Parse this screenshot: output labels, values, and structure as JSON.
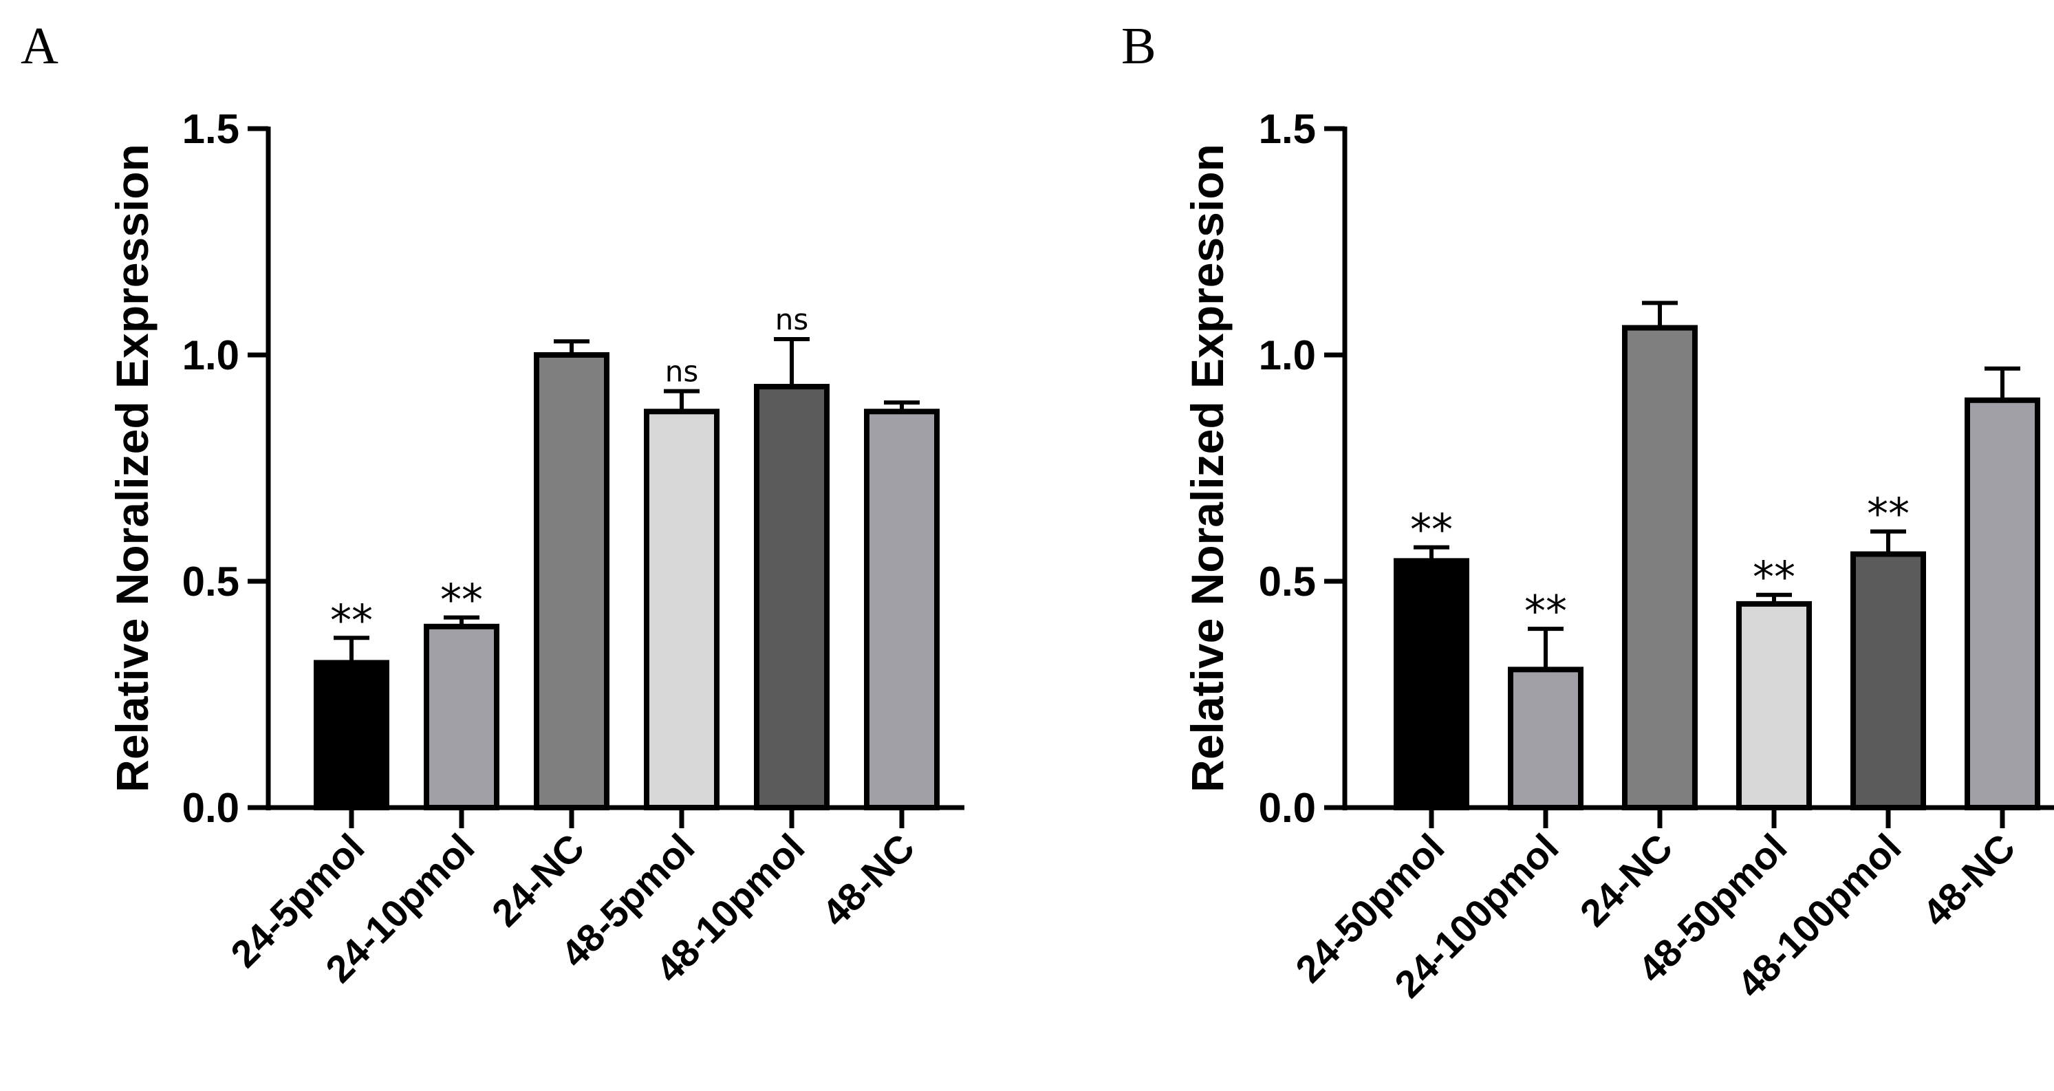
{
  "chart_data": [
    {
      "panel": "A",
      "type": "bar",
      "title": "",
      "xlabel": "",
      "ylabel": "Relative  Noralized Expression",
      "ylim": [
        0,
        1.5
      ],
      "yticks": [
        "0.0",
        "0.5",
        "1.0",
        "1.5"
      ],
      "categories": [
        "24-5pmol",
        "24-10pmol",
        "24-NC",
        "48-5pmol",
        "48-10pmol",
        "48-NC"
      ],
      "values": [
        0.32,
        0.4,
        1.0,
        0.875,
        0.93,
        0.875
      ],
      "errors": [
        0.055,
        0.02,
        0.03,
        0.045,
        0.105,
        0.02
      ],
      "significance": [
        "**",
        "**",
        "",
        "ns",
        "ns",
        ""
      ],
      "bar_colors": [
        "#000000",
        "#a1a0a6",
        "#7f7f7f",
        "#d7d7d7",
        "#5b5b5b",
        "#a1a0a6"
      ]
    },
    {
      "panel": "B",
      "type": "bar",
      "title": "",
      "xlabel": "",
      "ylabel": "Relative  Noralized Expression",
      "ylim": [
        0,
        1.5
      ],
      "yticks": [
        "0.0",
        "0.5",
        "1.0",
        "1.5"
      ],
      "categories": [
        "24-50pmol",
        "24-100pmol",
        "24-NC",
        "48-50pmol",
        "48-100pmol",
        "48-NC"
      ],
      "values": [
        0.545,
        0.305,
        1.06,
        0.45,
        0.56,
        0.9
      ],
      "errors": [
        0.03,
        0.09,
        0.055,
        0.02,
        0.05,
        0.07
      ],
      "significance": [
        "**",
        "**",
        "",
        "**",
        "**",
        ""
      ],
      "bar_colors": [
        "#000000",
        "#a1a0a6",
        "#7f7f7f",
        "#d7d7d7",
        "#5b5b5b",
        "#a1a0a6"
      ]
    }
  ]
}
